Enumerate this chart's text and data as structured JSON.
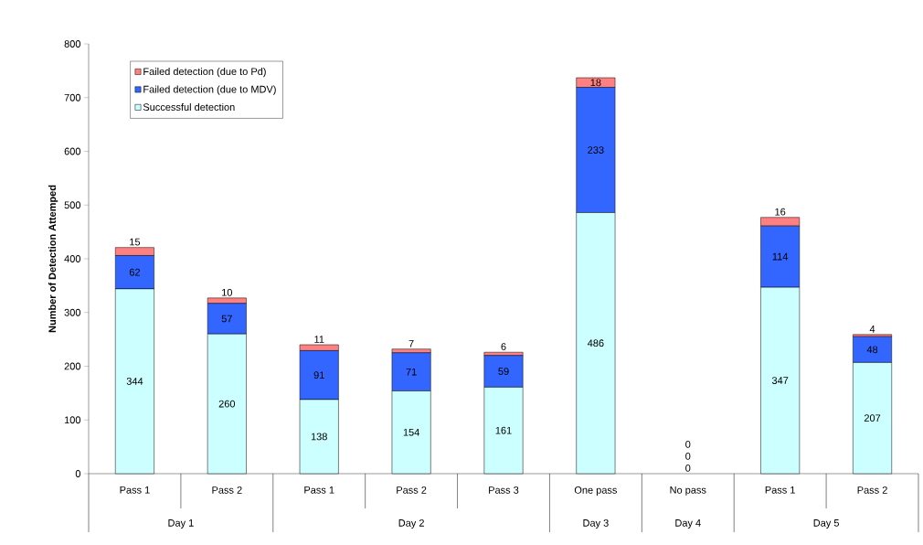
{
  "chart_data": {
    "type": "bar",
    "stacked": true,
    "ylabel": "Number of Detection Attemped",
    "categories": [
      "Pass 1",
      "Pass 2",
      "Pass 1",
      "Pass 2",
      "Pass 3",
      "One pass",
      "No pass",
      "Pass 1",
      "Pass 2"
    ],
    "annotations": [
      "Day 1",
      "Day 2",
      "Day 3",
      "Day 4",
      "Day 5"
    ],
    "series": [
      {
        "name": "Successful detection",
        "color": "#ccffff",
        "values": [
          344,
          260,
          138,
          154,
          161,
          486,
          0,
          347,
          207
        ]
      },
      {
        "name": "Failed detection (due to MDV)",
        "color": "#3366ff",
        "values": [
          62,
          57,
          91,
          71,
          59,
          233,
          0,
          114,
          48
        ]
      },
      {
        "name": "Failed detection (due to Pd)",
        "color": "#ff8080",
        "values": [
          15,
          10,
          11,
          7,
          6,
          18,
          0,
          16,
          4
        ]
      }
    ],
    "ylim": [
      0,
      800
    ],
    "yticks": [
      0,
      100,
      200,
      300,
      400,
      500,
      600,
      700,
      800
    ],
    "data_labels": true,
    "legend": "top left",
    "grid": false
  }
}
